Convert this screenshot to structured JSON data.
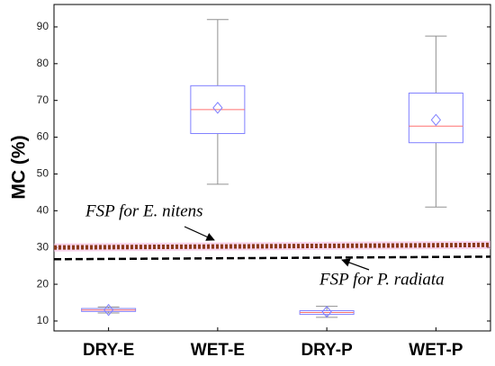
{
  "chart_data": {
    "type": "box",
    "y_label": "MC (%)",
    "categories": [
      "DRY-E",
      "WET-E",
      "DRY-P",
      "WET-P"
    ],
    "box_color": "#8080ff",
    "median_color": "#ff7070",
    "whisker_color": "#909090",
    "boxes": [
      {
        "min": 12.2,
        "q1": 12.6,
        "median": 13.0,
        "q3": 13.4,
        "max": 13.8,
        "mean": 13.0
      },
      {
        "min": 47.2,
        "q1": 61.0,
        "median": 67.5,
        "q3": 74.0,
        "max": 92.0,
        "mean": 68.0
      },
      {
        "min": 11.0,
        "q1": 11.8,
        "median": 12.3,
        "q3": 12.8,
        "max": 14.0,
        "mean": 12.5
      },
      {
        "min": 41.0,
        "q1": 58.5,
        "median": 63.0,
        "q3": 72.0,
        "max": 87.5,
        "mean": 64.7
      }
    ],
    "reference_lines": [
      {
        "name": "FSP for E. nitens",
        "values": [
          30.0,
          30.7
        ],
        "color": "#8b3a1a",
        "style": "dotted"
      },
      {
        "name": "FSP for P. radiata",
        "values": [
          26.8,
          27.5
        ],
        "color": "#000000",
        "style": "dashed"
      }
    ],
    "ylim": [
      7.3,
      96.1
    ],
    "yticks": [
      10,
      20,
      30,
      40,
      50,
      60,
      70,
      80,
      90
    ]
  }
}
